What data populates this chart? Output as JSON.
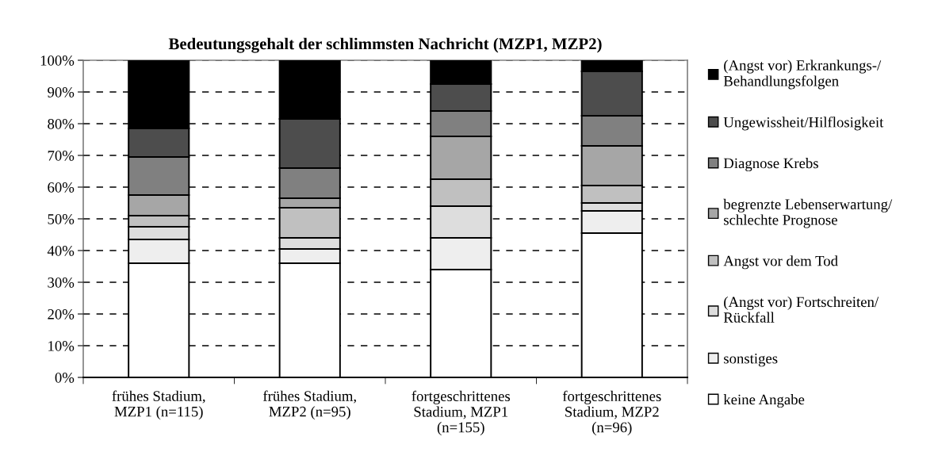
{
  "chart_data": {
    "type": "bar",
    "stacked": true,
    "title": "Bedeutungsgehalt der schlimmsten Nachricht (MZP1, MZP2)",
    "categories": [
      "frühes Stadium,\nMZP1 (n=115)",
      "frühes Stadium,\nMZP2 (n=95)",
      "fortgeschrittenes\nStadium, MZP1\n(n=155)",
      "fortgeschrittenes\nStadium, MZP2\n(n=96)"
    ],
    "series": [
      {
        "name": "keine Angabe",
        "color": "#ffffff",
        "values": [
          36,
          36,
          34,
          45.5
        ]
      },
      {
        "name": "sonstiges",
        "color": "#eeeeee",
        "values": [
          7.5,
          4.5,
          10,
          7
        ]
      },
      {
        "name": "(Angst vor) Fortschreiten/\nRückfall",
        "color": "#dddddd",
        "values": [
          4,
          3.5,
          10,
          2.5
        ]
      },
      {
        "name": "Angst vor dem Tod",
        "color": "#c0c0c0",
        "values": [
          3.5,
          9.5,
          8.5,
          5.5
        ]
      },
      {
        "name": "begrenzte Lebenserwartung/\nschlechte Prognose",
        "color": "#a6a6a6",
        "values": [
          6.5,
          3,
          13.5,
          12.5
        ]
      },
      {
        "name": "Diagnose Krebs",
        "color": "#808080",
        "values": [
          12,
          9.5,
          8,
          9.5
        ]
      },
      {
        "name": "Ungewissheit/Hilflosigkeit",
        "color": "#4d4d4d",
        "values": [
          9,
          15.5,
          8.5,
          14
        ]
      },
      {
        "name": "(Angst vor) Erkrankungs-/\nBehandlungsfolgen",
        "color": "#000000",
        "values": [
          21.5,
          18.5,
          7.5,
          3.5
        ]
      }
    ],
    "ylim": [
      0,
      100
    ],
    "yticks": [
      {
        "value": 0,
        "label": "0%"
      },
      {
        "value": 10,
        "label": "10%"
      },
      {
        "value": 20,
        "label": "20%"
      },
      {
        "value": 30,
        "label": "30%"
      },
      {
        "value": 40,
        "label": "40%"
      },
      {
        "value": 50,
        "label": "50%"
      },
      {
        "value": 60,
        "label": "60%"
      },
      {
        "value": 70,
        "label": "70%"
      },
      {
        "value": 80,
        "label": "80%"
      },
      {
        "value": 90,
        "label": "90%"
      },
      {
        "value": 100,
        "label": "100%"
      }
    ],
    "grid": "y",
    "legend": "right"
  }
}
